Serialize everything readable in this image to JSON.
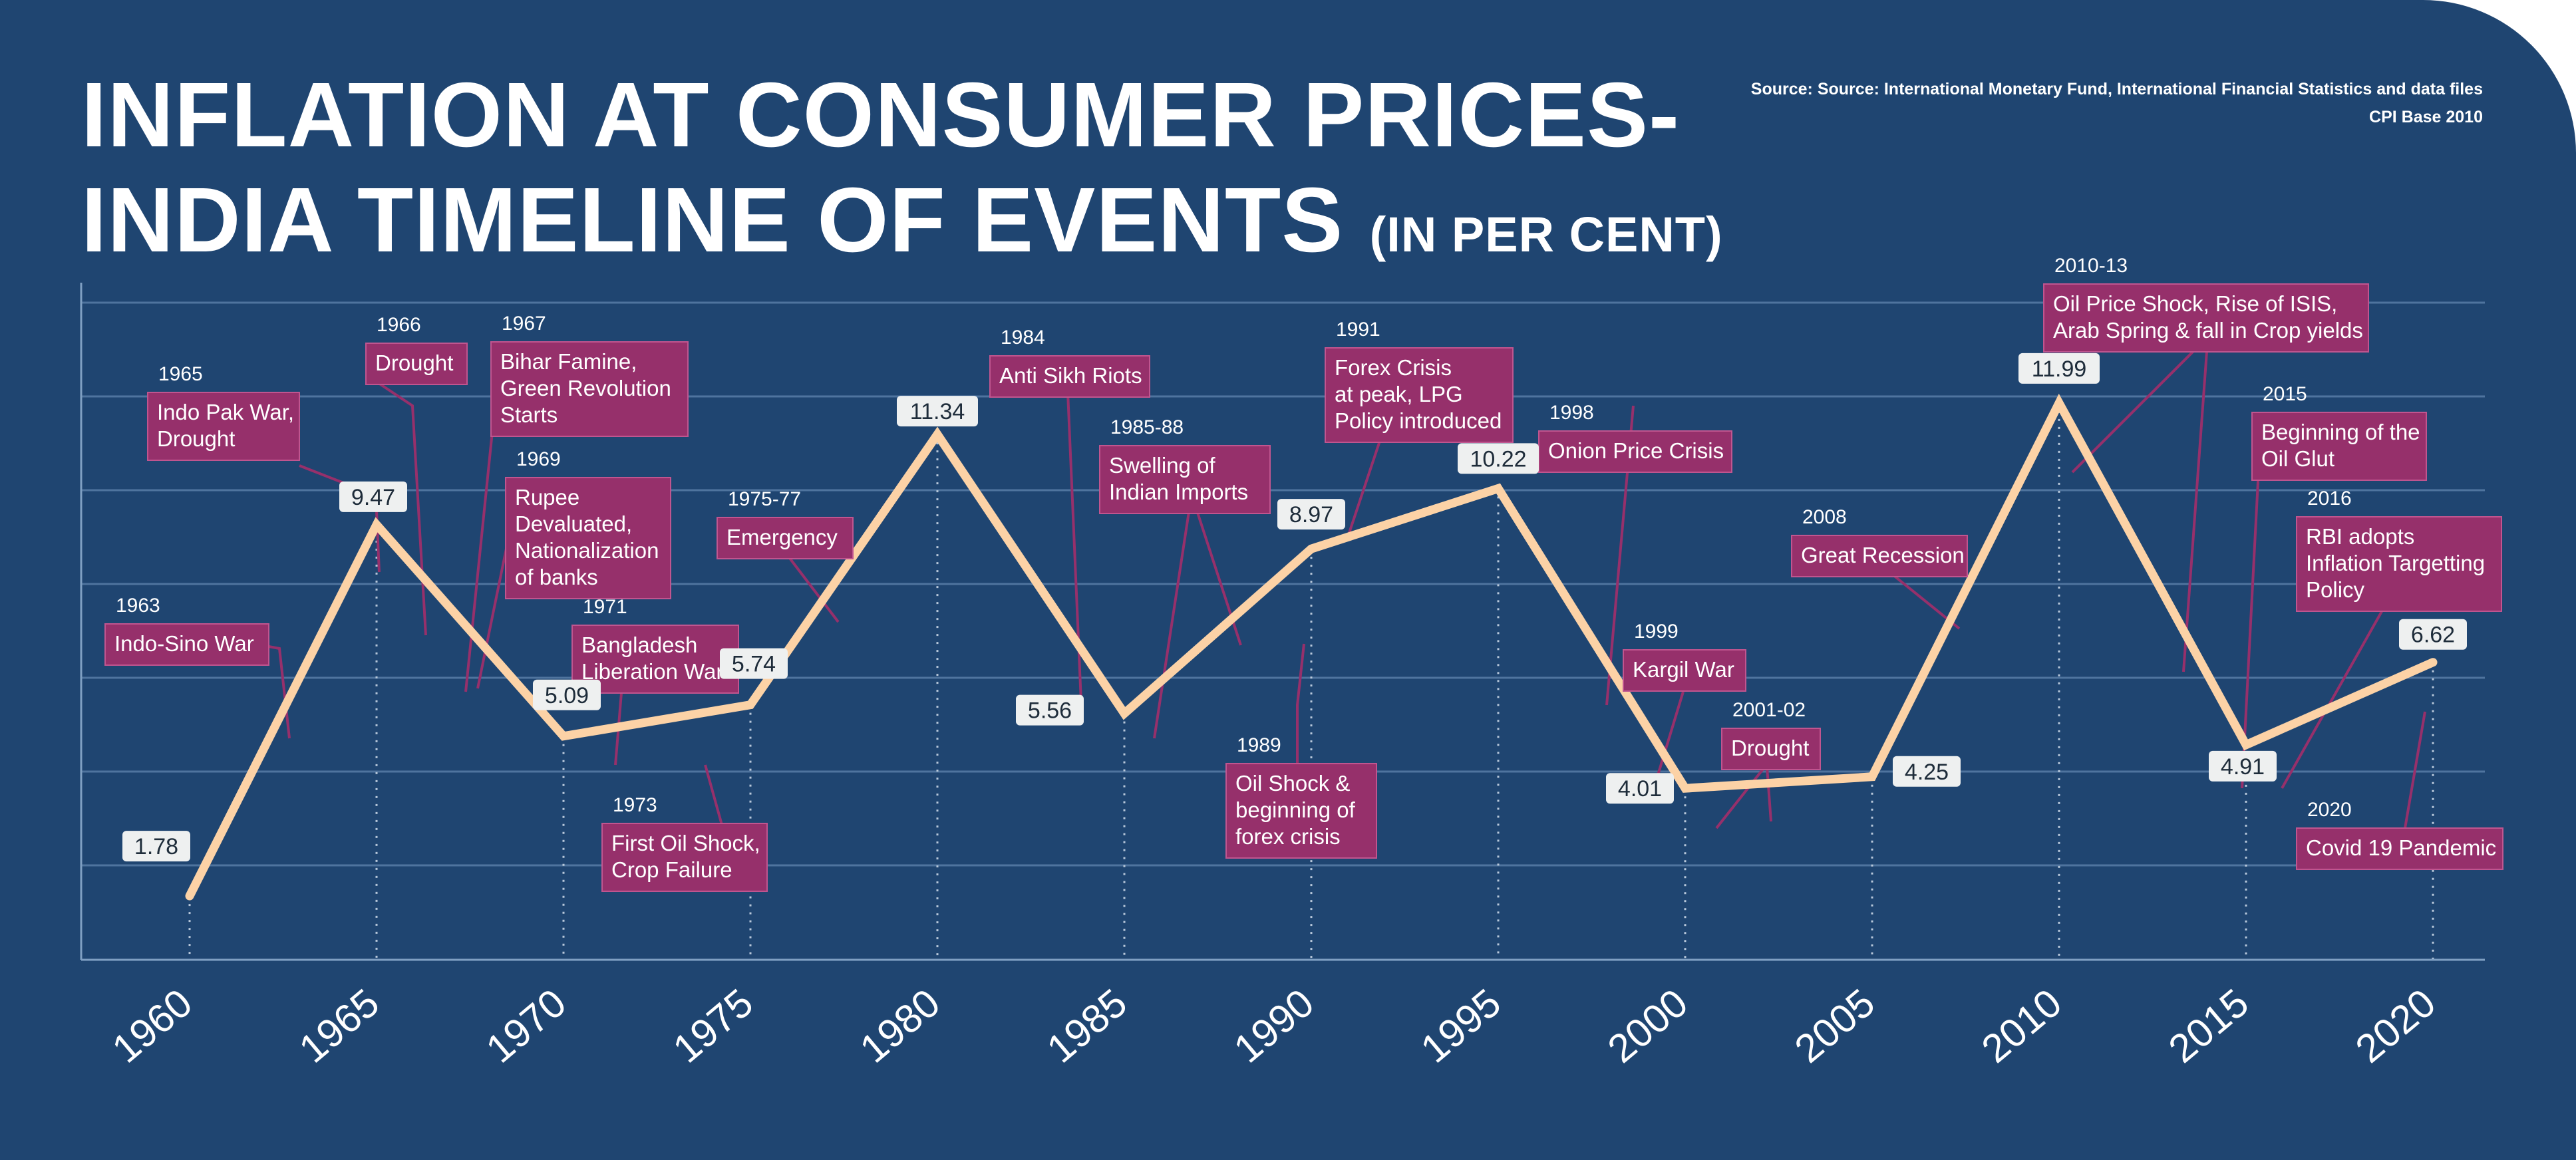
{
  "title": {
    "line1": "INFLATION AT CONSUMER PRICES-",
    "line2": "INDIA TIMELINE OF EVENTS",
    "unit": "(IN PER CENT)"
  },
  "source": {
    "line1": "Source: Source: International Monetary Fund, International Financial Statistics and data files",
    "line2": "CPI Base 2010"
  },
  "colors": {
    "background": "#1f4571",
    "line": "#fcd2a6",
    "event_box": "#96306b",
    "value_box": "#eef0f0"
  },
  "chart_data": {
    "type": "line",
    "title": "INFLATION AT CONSUMER PRICES- INDIA TIMELINE OF EVENTS",
    "ylabel": "(IN PER CENT)",
    "xlabel": "",
    "grid": true,
    "xlim": [
      1960,
      2020
    ],
    "ylim": [
      0.5,
      14
    ],
    "categories": [
      "1960",
      "1965",
      "1970",
      "1975",
      "1980",
      "1985",
      "1990",
      "1995",
      "2000",
      "2005",
      "2010",
      "2015",
      "2020"
    ],
    "x": [
      1960,
      1965,
      1970,
      1975,
      1980,
      1985,
      1990,
      1995,
      2000,
      2005,
      2010,
      2015,
      2020
    ],
    "values": [
      1.78,
      9.47,
      5.09,
      5.74,
      11.34,
      5.56,
      8.97,
      10.22,
      4.01,
      4.25,
      11.99,
      4.91,
      6.62
    ],
    "value_labels": [
      "1.78",
      "9.47",
      "5.09",
      "5.74",
      "11.34",
      "5.56",
      "8.97",
      "10.22",
      "4.01",
      "4.25",
      "11.99",
      "4.91",
      "6.62"
    ],
    "events": [
      {
        "year": "1963",
        "label": [
          "Indo-Sino War"
        ],
        "at": 1963
      },
      {
        "year": "1965",
        "label": [
          "Indo Pak War,",
          "Drought"
        ],
        "at": 1965
      },
      {
        "year": "1966",
        "label": [
          "Drought"
        ],
        "at": 1966
      },
      {
        "year": "1967",
        "label": [
          "Bihar Famine,",
          "Green Revolution",
          "Starts"
        ],
        "at": 1967
      },
      {
        "year": "1969",
        "label": [
          "Rupee",
          "Devaluated,",
          "Nationalization",
          "of banks"
        ],
        "at": 1969
      },
      {
        "year": "1971",
        "label": [
          "Bangladesh",
          "Liberation War"
        ],
        "at": 1971
      },
      {
        "year": "1973",
        "label": [
          "First Oil Shock,",
          "Crop Failure"
        ],
        "at": 1973
      },
      {
        "year": "1975-77",
        "label": [
          "Emergency"
        ],
        "at": 1976
      },
      {
        "year": "1984",
        "label": [
          "Anti Sikh Riots"
        ],
        "at": 1984
      },
      {
        "year": "1985-88",
        "label": [
          "Swelling of",
          "Indian Imports"
        ],
        "at": 1986.5
      },
      {
        "year": "1989",
        "label": [
          "Oil Shock &",
          "beginning of",
          "forex crisis"
        ],
        "at": 1989
      },
      {
        "year": "1991",
        "label": [
          "Forex Crisis",
          "at peak, LPG",
          "Policy introduced"
        ],
        "at": 1991
      },
      {
        "year": "1998",
        "label": [
          "Onion Price Crisis"
        ],
        "at": 1998
      },
      {
        "year": "1999",
        "label": [
          "Kargil War"
        ],
        "at": 1999
      },
      {
        "year": "2001-02",
        "label": [
          "Drought"
        ],
        "at": 2001.5
      },
      {
        "year": "2008",
        "label": [
          "Great Recession"
        ],
        "at": 2008
      },
      {
        "year": "2010-13",
        "label": [
          "Oil Price Shock, Rise of ISIS,",
          "Arab Spring & fall in Crop yields"
        ],
        "at": 2011.5
      },
      {
        "year": "2015",
        "label": [
          "Beginning of the",
          "Oil Glut"
        ],
        "at": 2015
      },
      {
        "year": "2016",
        "label": [
          "RBI adopts",
          "Inflation Targetting",
          "Policy"
        ],
        "at": 2016
      },
      {
        "year": "2020",
        "label": [
          "Covid 19 Pandemic"
        ],
        "at": 2020
      }
    ]
  }
}
